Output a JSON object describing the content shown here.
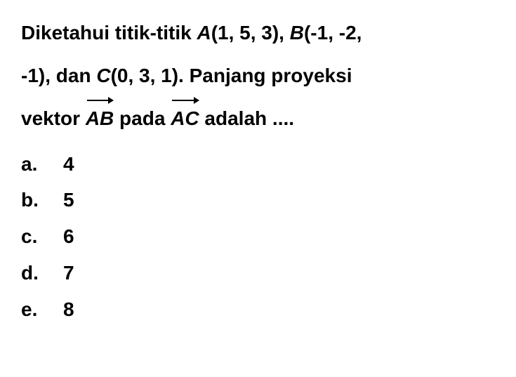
{
  "question": {
    "line1_part1": "Diketahui titik-titik ",
    "pointA_label": "A",
    "pointA_coords": "(1, 5, 3), ",
    "pointB_label": "B",
    "pointB_coords": "(-1, -2,",
    "line2_part1": "-1), dan ",
    "pointC_label": "C",
    "pointC_coords": "(0, 3, 1). Panjang proyeksi",
    "line3_part1": "vektor ",
    "vector1": "AB",
    "line3_part2": " pada ",
    "vector2": "AC",
    "line3_part3": " adalah ...."
  },
  "options": [
    {
      "letter": "a.",
      "value": "4"
    },
    {
      "letter": "b.",
      "value": "5"
    },
    {
      "letter": "c.",
      "value": "6"
    },
    {
      "letter": "d.",
      "value": "7"
    },
    {
      "letter": "e.",
      "value": "8"
    }
  ],
  "styling": {
    "background_color": "#ffffff",
    "text_color": "#000000",
    "font_size": 28,
    "font_weight": "bold",
    "line_height": 1.9
  }
}
